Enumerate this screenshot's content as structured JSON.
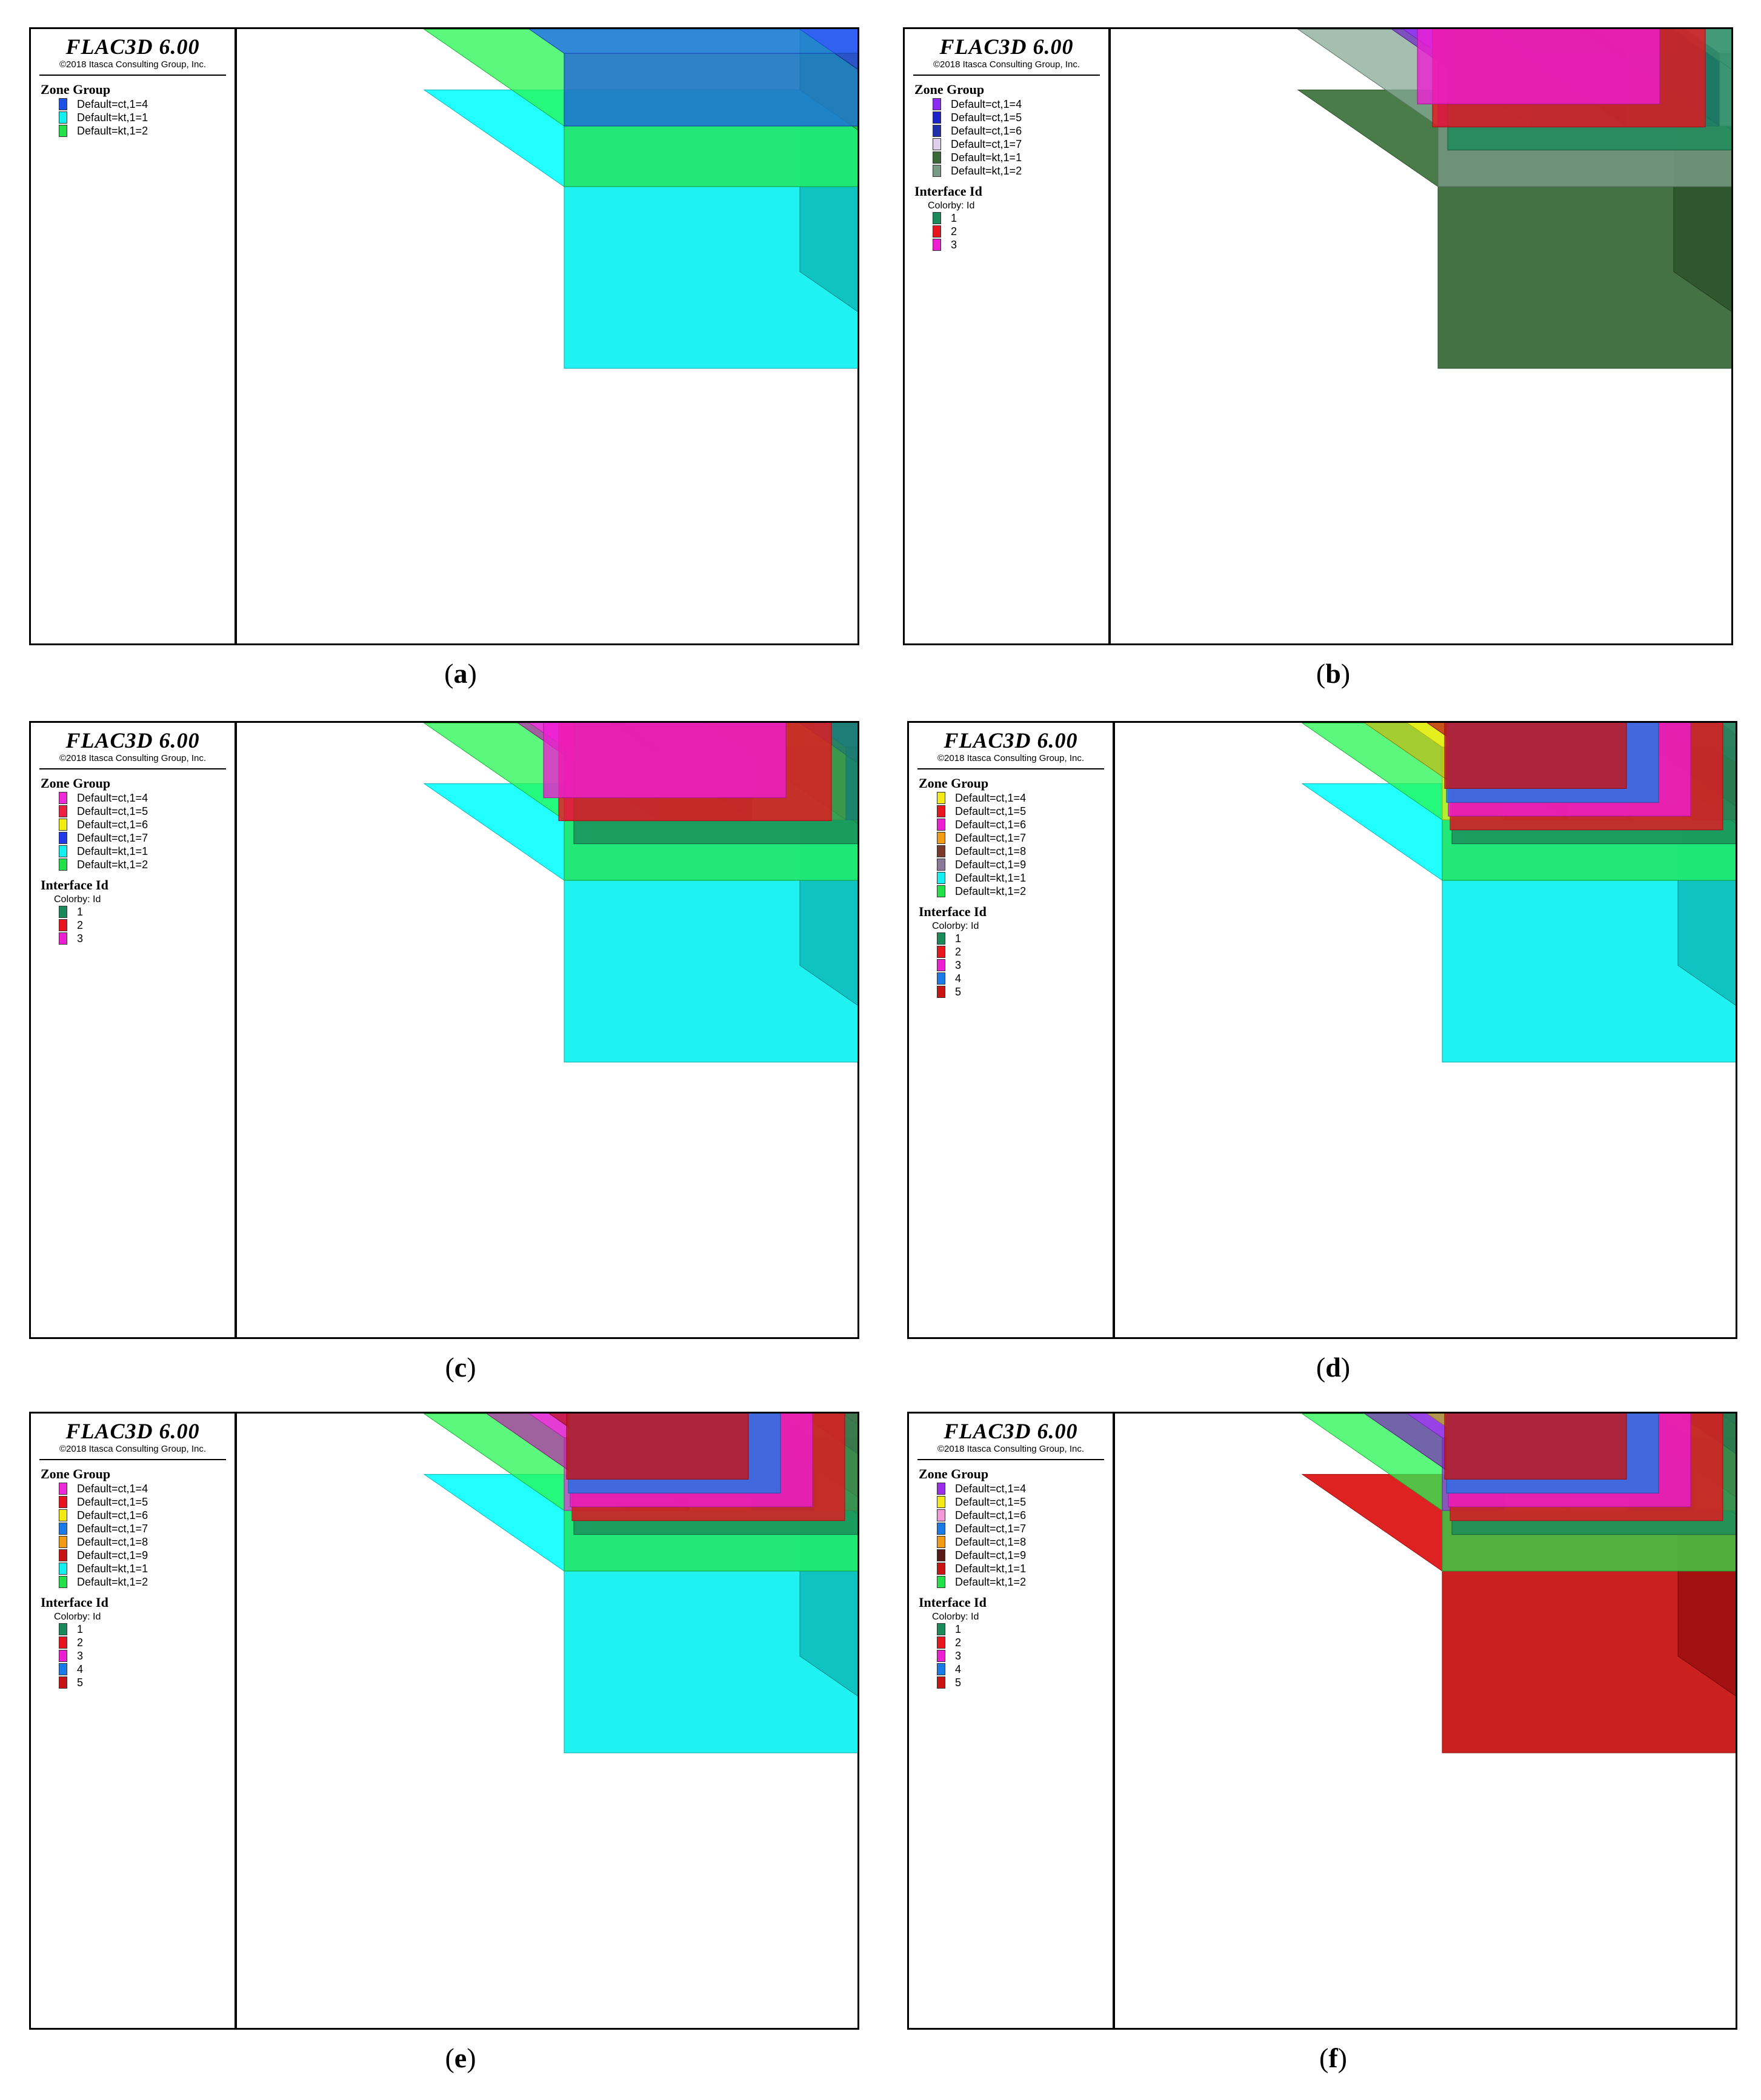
{
  "panels": [
    {
      "id": "a",
      "caption": "a",
      "app_title": "FLAC3D 6.00",
      "copyright": "©2018 Itasca Consulting Group, Inc.",
      "zone_group_title": "Zone Group",
      "zone_groups": [
        {
          "label": "Default=ct,1=4",
          "color": "#1c50e6"
        },
        {
          "label": "Default=kt,1=1",
          "color": "#14f0f0"
        },
        {
          "label": "Default=kt,1=2",
          "color": "#22e04a"
        }
      ],
      "interface_title": "",
      "colorby": "",
      "interfaces": []
    },
    {
      "id": "b",
      "caption": "b",
      "app_title": "FLAC3D 6.00",
      "copyright": "©2018 Itasca Consulting Group, Inc.",
      "zone_group_title": "Zone Group",
      "zone_groups": [
        {
          "label": "Default=ct,1=4",
          "color": "#8a2cf2"
        },
        {
          "label": "Default=ct,1=5",
          "color": "#1c24c8"
        },
        {
          "label": "Default=ct,1=6",
          "color": "#2230a8"
        },
        {
          "label": "Default=ct,1=7",
          "color": "#ddd0ea"
        },
        {
          "label": "Default=kt,1=1",
          "color": "#3a6a3a"
        },
        {
          "label": "Default=kt,1=2",
          "color": "#7a9a88"
        }
      ],
      "interface_title": "Interface Id",
      "colorby": "Colorby: Id",
      "interfaces": [
        {
          "label": "1",
          "color": "#1a8a5a"
        },
        {
          "label": "2",
          "color": "#e8141e"
        },
        {
          "label": "3",
          "color": "#ee1ed2"
        }
      ]
    },
    {
      "id": "c",
      "caption": "c",
      "app_title": "FLAC3D 6.00",
      "copyright": "©2018 Itasca Consulting Group, Inc.",
      "zone_group_title": "Zone Group",
      "zone_groups": [
        {
          "label": "Default=ct,1=4",
          "color": "#ee2ad8"
        },
        {
          "label": "Default=ct,1=5",
          "color": "#ee2040"
        },
        {
          "label": "Default=ct,1=6",
          "color": "#f0ee10"
        },
        {
          "label": "Default=ct,1=7",
          "color": "#2238e8"
        },
        {
          "label": "Default=kt,1=1",
          "color": "#14f0f0"
        },
        {
          "label": "Default=kt,1=2",
          "color": "#22e04a"
        }
      ],
      "interface_title": "Interface Id",
      "colorby": "Colorby: Id",
      "interfaces": [
        {
          "label": "1",
          "color": "#1a8a5a"
        },
        {
          "label": "2",
          "color": "#e8141e"
        },
        {
          "label": "3",
          "color": "#ee1ed2"
        }
      ]
    },
    {
      "id": "d",
      "caption": "d",
      "app_title": "FLAC3D 6.00",
      "copyright": "©2018 Itasca Consulting Group, Inc.",
      "zone_group_title": "Zone Group",
      "zone_groups": [
        {
          "label": "Default=ct,1=4",
          "color": "#f2ea14"
        },
        {
          "label": "Default=ct,1=5",
          "color": "#e8141e"
        },
        {
          "label": "Default=ct,1=6",
          "color": "#ee1ed2"
        },
        {
          "label": "Default=ct,1=7",
          "color": "#f29a14"
        },
        {
          "label": "Default=ct,1=8",
          "color": "#7a3a2a"
        },
        {
          "label": "Default=ct,1=9",
          "color": "#8a7a9a"
        },
        {
          "label": "Default=kt,1=1",
          "color": "#14f0f0"
        },
        {
          "label": "Default=kt,1=2",
          "color": "#22e04a"
        }
      ],
      "interface_title": "Interface Id",
      "colorby": "Colorby: Id",
      "interfaces": [
        {
          "label": "1",
          "color": "#1a8a5a"
        },
        {
          "label": "2",
          "color": "#e8141e"
        },
        {
          "label": "3",
          "color": "#ee1ed2"
        },
        {
          "label": "4",
          "color": "#1a7ae8"
        },
        {
          "label": "5",
          "color": "#c81414"
        }
      ]
    },
    {
      "id": "e",
      "caption": "e",
      "app_title": "FLAC3D 6.00",
      "copyright": "©2018 Itasca Consulting Group, Inc.",
      "zone_group_title": "Zone Group",
      "zone_groups": [
        {
          "label": "Default=ct,1=4",
          "color": "#ee2ad8"
        },
        {
          "label": "Default=ct,1=5",
          "color": "#e8141e"
        },
        {
          "label": "Default=ct,1=6",
          "color": "#f2ea14"
        },
        {
          "label": "Default=ct,1=7",
          "color": "#1a7ae8"
        },
        {
          "label": "Default=ct,1=8",
          "color": "#f29a14"
        },
        {
          "label": "Default=ct,1=9",
          "color": "#c81414"
        },
        {
          "label": "Default=kt,1=1",
          "color": "#14f0f0"
        },
        {
          "label": "Default=kt,1=2",
          "color": "#22e04a"
        }
      ],
      "interface_title": "Interface Id",
      "colorby": "Colorby: Id",
      "interfaces": [
        {
          "label": "1",
          "color": "#1a8a5a"
        },
        {
          "label": "2",
          "color": "#e8141e"
        },
        {
          "label": "3",
          "color": "#ee1ed2"
        },
        {
          "label": "4",
          "color": "#1a7ae8"
        },
        {
          "label": "5",
          "color": "#c81414"
        }
      ]
    },
    {
      "id": "f",
      "caption": "f",
      "app_title": "FLAC3D 6.00",
      "copyright": "©2018 Itasca Consulting Group, Inc.",
      "zone_group_title": "Zone Group",
      "zone_groups": [
        {
          "label": "Default=ct,1=4",
          "color": "#9a2ee8"
        },
        {
          "label": "Default=ct,1=5",
          "color": "#f2ea14"
        },
        {
          "label": "Default=ct,1=6",
          "color": "#f29ad8"
        },
        {
          "label": "Default=ct,1=7",
          "color": "#1a7ae8"
        },
        {
          "label": "Default=ct,1=8",
          "color": "#f29a14"
        },
        {
          "label": "Default=ct,1=9",
          "color": "#5a1a1a"
        },
        {
          "label": "Default=kt,1=1",
          "color": "#c81414"
        },
        {
          "label": "Default=kt,1=2",
          "color": "#22e04a"
        }
      ],
      "interface_title": "Interface Id",
      "colorby": "Colorby: Id",
      "interfaces": [
        {
          "label": "1",
          "color": "#1a8a5a"
        },
        {
          "label": "2",
          "color": "#e8141e"
        },
        {
          "label": "3",
          "color": "#ee1ed2"
        },
        {
          "label": "4",
          "color": "#1a7ae8"
        },
        {
          "label": "5",
          "color": "#c81414"
        }
      ]
    }
  ]
}
